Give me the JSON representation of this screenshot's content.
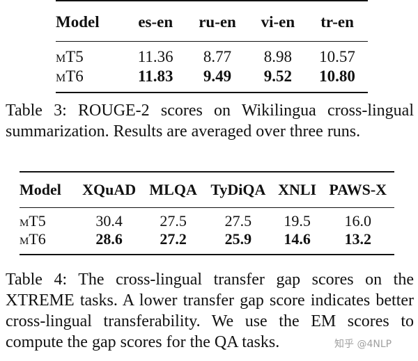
{
  "table3": {
    "headers": [
      "Model",
      "es-en",
      "ru-en",
      "vi-en",
      "tr-en"
    ],
    "rows": [
      {
        "model": "mT5",
        "values": [
          "11.36",
          "8.77",
          "8.98",
          "10.57"
        ],
        "bold": false
      },
      {
        "model": "mT6",
        "values": [
          "11.83",
          "9.49",
          "9.52",
          "10.80"
        ],
        "bold": true
      }
    ],
    "caption": "Table 3: ROUGE-2 scores on Wikilingua cross-lingual summarization. Results are averaged over three runs."
  },
  "table4": {
    "headers": [
      "Model",
      "XQuAD",
      "MLQA",
      "TyDiQA",
      "XNLI",
      "PAWS-X"
    ],
    "rows": [
      {
        "model": "mT5",
        "values": [
          "30.4",
          "27.5",
          "27.5",
          "19.5",
          "16.0"
        ],
        "bold": false
      },
      {
        "model": "mT6",
        "values": [
          "28.6",
          "27.2",
          "25.9",
          "14.6",
          "13.2"
        ],
        "bold": true
      }
    ],
    "caption": "Table 4: The cross-lingual transfer gap scores on the XTREME tasks. A lower transfer gap score indicates better cross-lingual transferability. We use the EM scores to compute the gap scores for the QA tasks."
  },
  "watermark": "知乎 @4NLP"
}
